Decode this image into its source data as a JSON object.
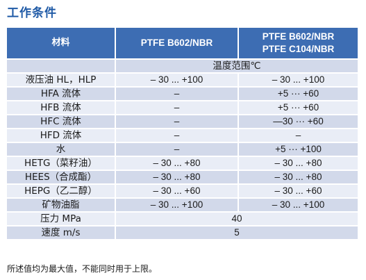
{
  "title": "工作条件",
  "header": {
    "col_material": "材料",
    "col_b602": "PTFE B602/NBR",
    "col_combo_line1": "PTFE B602/NBR",
    "col_combo_line2": "PTFE C104/NBR"
  },
  "temperature_range_label": "温度范围℃",
  "rows": [
    {
      "medium": "液压油 HL，HLP",
      "b602": "– 30 ... +100",
      "combo": "– 30 ... +100"
    },
    {
      "medium": "HFA 流体",
      "b602": "–",
      "combo": "+5 ··· +60"
    },
    {
      "medium": "HFB 流体",
      "b602": "–",
      "combo": "+5 ··· +60"
    },
    {
      "medium": "HFC 流体",
      "b602": "–",
      "combo": "—30 ··· +60"
    },
    {
      "medium": "HFD 流体",
      "b602": "–",
      "combo": "–"
    },
    {
      "medium": "水",
      "b602": "–",
      "combo": "+5 ··· +100"
    },
    {
      "medium": "HETG（菜籽油）",
      "b602": "– 30 ... +80",
      "combo": "– 30 ... +80"
    },
    {
      "medium": "HEES（合成酯）",
      "b602": "– 30 ... +80",
      "combo": "– 30 ... +80"
    },
    {
      "medium": "HEPG（乙二醇）",
      "b602": "– 30 ... +60",
      "combo": "– 30 ... +60"
    },
    {
      "medium": "矿物油脂",
      "b602": "– 30 ... +100",
      "combo": "– 30 ... +100"
    }
  ],
  "pressure": {
    "label": "压力 MPa",
    "value": "40"
  },
  "speed": {
    "label": "速度 m/s",
    "value": "5"
  },
  "footnote": "所述值均为最大值，不能同时用于上限。",
  "colors": {
    "title": "#1f5aa6",
    "header_bg": "#3d6db3",
    "row_dark": "#d2d9ea",
    "row_light": "#e9edf6"
  }
}
